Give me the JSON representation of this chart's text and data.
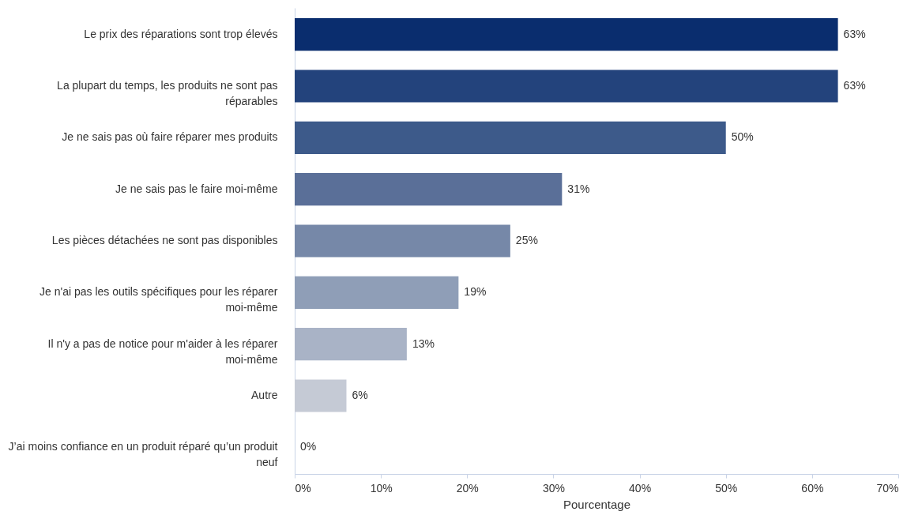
{
  "chart_data": {
    "type": "bar",
    "orientation": "horizontal",
    "xlabel": "Pourcentage",
    "categories": [
      "Le prix des réparations sont trop élevés",
      "La plupart du temps, les produits ne sont pas réparables",
      "Je ne sais pas où faire réparer mes produits",
      "Je ne sais pas le faire moi-même",
      "Les pièces détachées ne sont pas disponibles",
      "Je n'ai pas les outils spécifiques pour les réparer moi-même",
      "Il n'y a pas de notice pour m'aider à les réparer moi-même",
      "Autre",
      "J’ai moins confiance en un produit réparé qu’un produit neuf"
    ],
    "values": [
      63,
      63,
      50,
      31,
      25,
      19,
      13,
      6,
      0
    ],
    "value_labels": [
      "63%",
      "63%",
      "50%",
      "31%",
      "25%",
      "19%",
      "13%",
      "6%",
      "0%"
    ],
    "colors": [
      "#0a2d6e",
      "#23437c",
      "#3d5a8a",
      "#5a6f98",
      "#7688a8",
      "#8f9eb7",
      "#a9b3c6",
      "#c5cad5",
      "#d9dde5"
    ],
    "xlim": [
      0,
      70
    ],
    "xticks": [
      {
        "value": 0,
        "label": "0%"
      },
      {
        "value": 10,
        "label": "10%"
      },
      {
        "value": 20,
        "label": "20%"
      },
      {
        "value": 30,
        "label": "30%"
      },
      {
        "value": 40,
        "label": "40%"
      },
      {
        "value": 50,
        "label": "50%"
      },
      {
        "value": 60,
        "label": "60%"
      },
      {
        "value": 70,
        "label": "70%"
      }
    ],
    "grid": false,
    "legend": false
  }
}
